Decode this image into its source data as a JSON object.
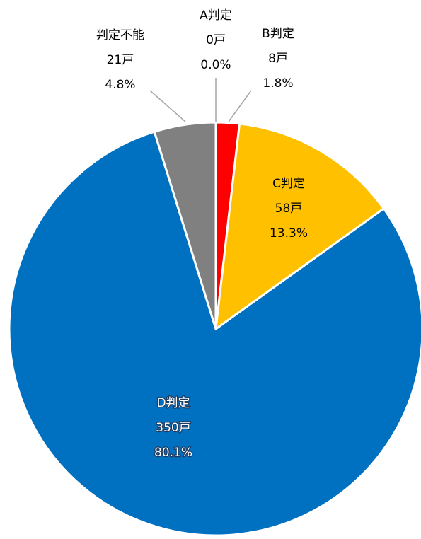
{
  "chart_data": {
    "type": "pie",
    "categories": [
      "A判定",
      "B判定",
      "C判定",
      "D判定",
      "判定不能"
    ],
    "values": [
      0,
      8,
      58,
      350,
      21
    ],
    "value_labels": [
      "0戸",
      "8戸",
      "58戸",
      "350戸",
      "21戸"
    ],
    "percentages": [
      0.0,
      1.8,
      13.3,
      80.1,
      4.8
    ],
    "percentage_labels": [
      "0.0%",
      "1.8%",
      "13.3%",
      "80.1%",
      "4.8%"
    ],
    "colors": [
      "#a5a5a5",
      "#ff0000",
      "#ffc000",
      "#0070c0",
      "#808080"
    ]
  }
}
